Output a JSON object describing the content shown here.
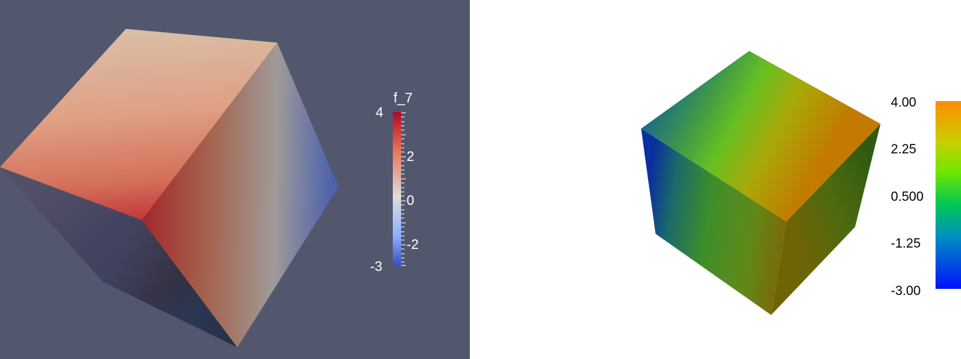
{
  "left_view": {
    "background": "#52576d",
    "colormap": "cool-to-warm",
    "scalar_bar": {
      "title": "f_7",
      "labels": [
        "4",
        "2",
        "0",
        "-2",
        "-3"
      ],
      "color_top": "#b40426",
      "color_mid": "#dddddd",
      "color_bottom": "#3b4cc0"
    }
  },
  "right_view": {
    "background": "#ffffff",
    "colormap": "rainbow",
    "scalar_bar": {
      "labels": [
        "4.00",
        "2.25",
        "0.500",
        "-1.25",
        "-3.00"
      ],
      "color_top": "#ff8c00",
      "color_mid": "#00c853",
      "color_bottom": "#0011ff"
    }
  }
}
